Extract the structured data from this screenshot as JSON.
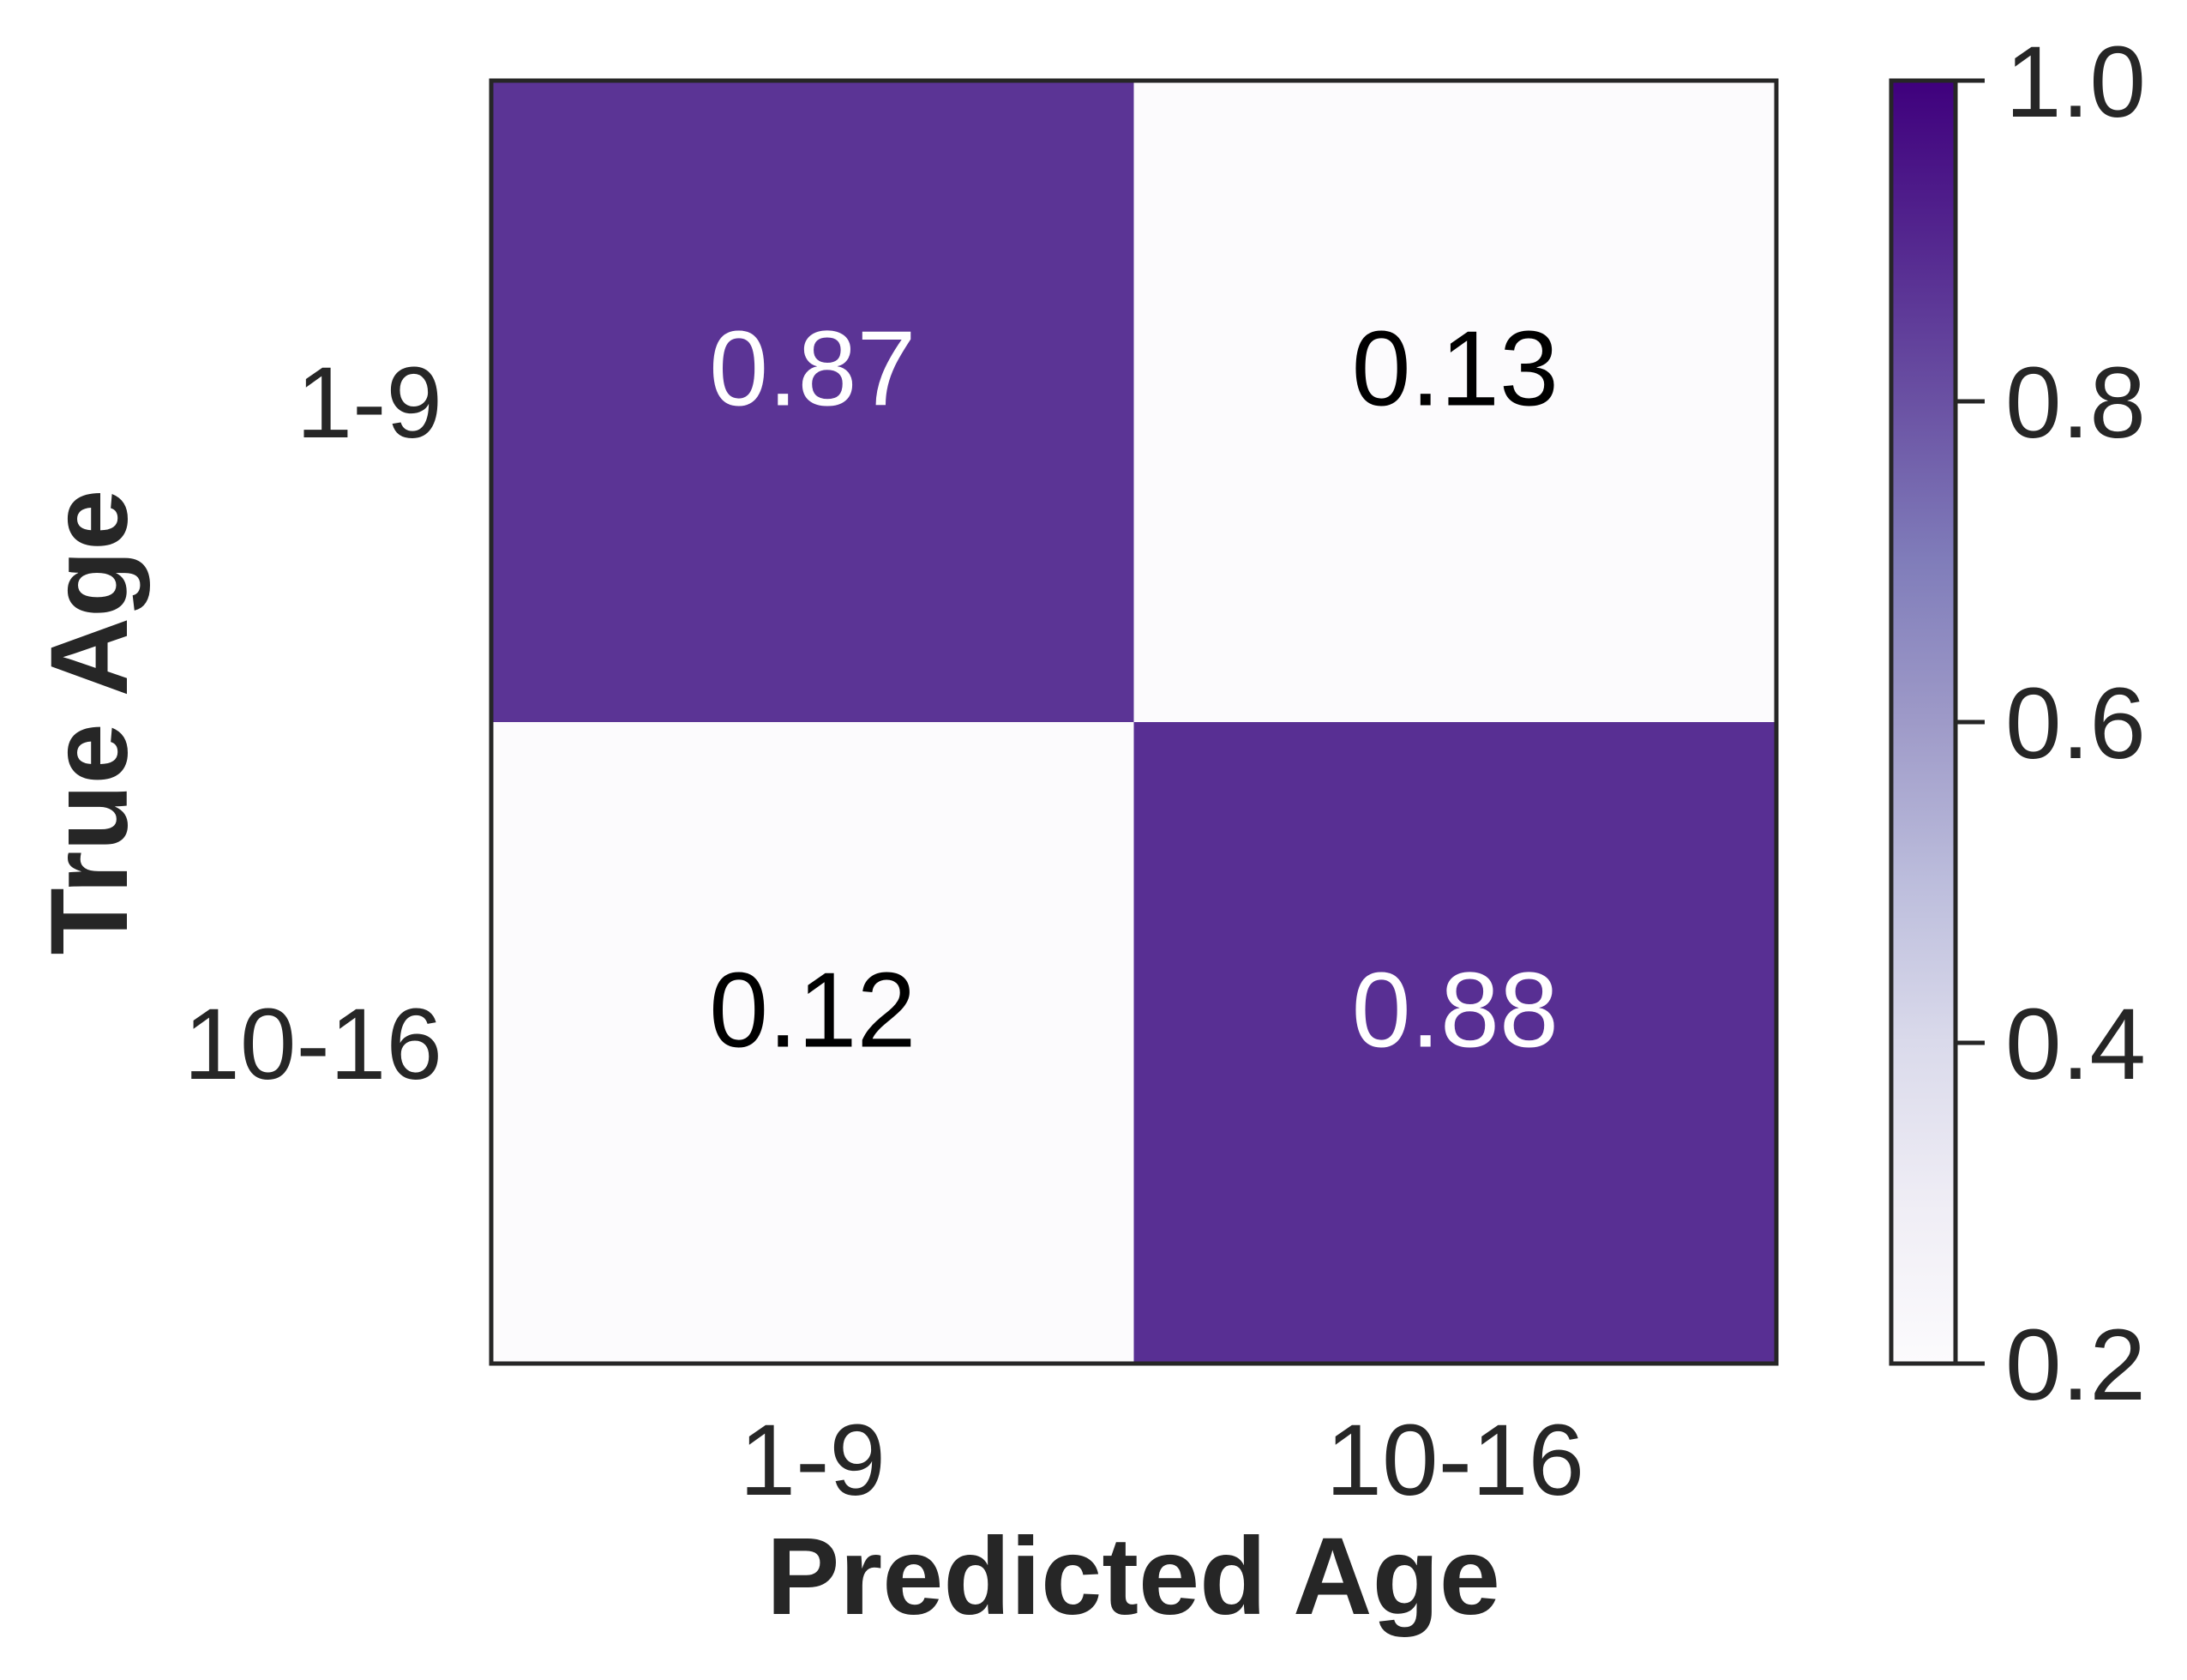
{
  "chart_data": {
    "type": "heatmap",
    "title": "",
    "xlabel": "Predicted Age",
    "ylabel": "True Age",
    "x_categories": [
      "1-9",
      "10-16"
    ],
    "y_categories": [
      "1-9",
      "10-16"
    ],
    "values": [
      [
        0.87,
        0.13
      ],
      [
        0.12,
        0.88
      ]
    ],
    "value_labels": [
      [
        "0.87",
        "0.13"
      ],
      [
        "0.12",
        "0.88"
      ]
    ],
    "colorbar": {
      "range": [
        0.2,
        1.0
      ],
      "ticks": [
        0.2,
        0.4,
        0.6,
        0.8,
        1.0
      ],
      "tick_labels": [
        "0.2",
        "0.4",
        "0.6",
        "0.8",
        "1.0"
      ],
      "colormap": "Purples",
      "color_low": "#fcfbfd",
      "color_high": "#3f007d"
    },
    "grid": false,
    "legend": "colorbar-right"
  }
}
